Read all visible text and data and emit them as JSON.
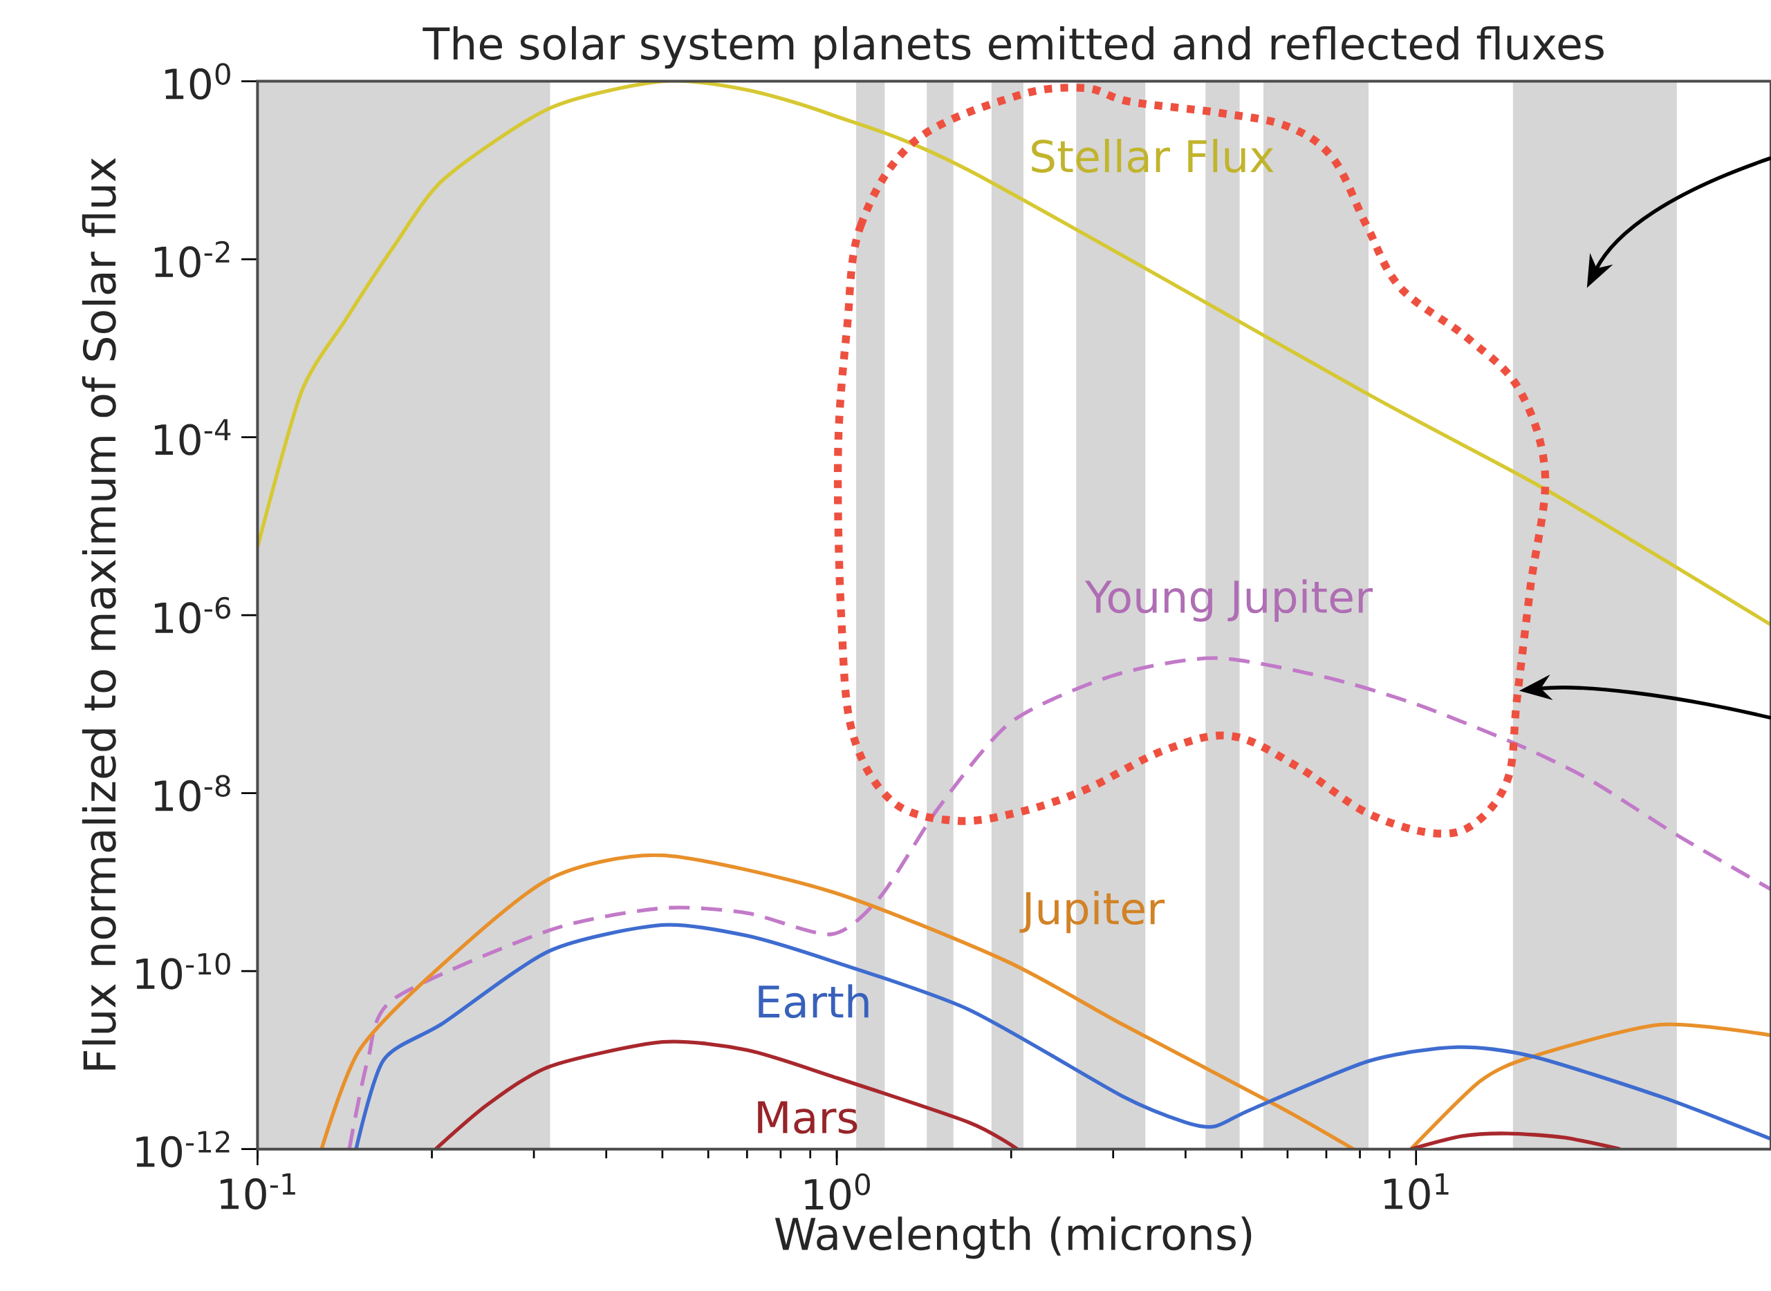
{
  "chart_data": {
    "type": "line",
    "title": "The solar system planets emitted and reflected fluxes",
    "xlabel": "Wavelength (microns)",
    "ylabel": "Flux normalized to maximum of Solar flux",
    "log": "xy",
    "xlim": [
      0.1,
      41
    ],
    "ylim": [
      1e-12,
      1
    ],
    "xticks": [
      {
        "value": 0.1,
        "label": "10$^{-1}$"
      },
      {
        "value": 1,
        "label": "10$^{0}$"
      },
      {
        "value": 10,
        "label": "10$^{1}$"
      }
    ],
    "yticks": [
      {
        "value": 1e-12,
        "label": "10$^{-12}$"
      },
      {
        "value": 1e-10,
        "label": "10$^{-10}$"
      },
      {
        "value": 1e-08,
        "label": "10$^{-8}$"
      },
      {
        "value": 1e-06,
        "label": "10$^{-6}$"
      },
      {
        "value": 0.0001,
        "label": "10$^{-4}$"
      },
      {
        "value": 0.01,
        "label": "10$^{-2}$"
      },
      {
        "value": 1,
        "label": "10$^{0}$"
      }
    ],
    "bands": [
      {
        "axis": "x",
        "from": 0.1,
        "to": 0.32,
        "color": "#d6d6d6"
      },
      {
        "axis": "x",
        "from": 1.08,
        "to": 1.21,
        "color": "#d6d6d6"
      },
      {
        "axis": "x",
        "from": 1.43,
        "to": 1.59,
        "color": "#d6d6d6"
      },
      {
        "axis": "x",
        "from": 1.85,
        "to": 2.1,
        "color": "#d6d6d6"
      },
      {
        "axis": "x",
        "from": 2.59,
        "to": 3.41,
        "color": "#d6d6d6"
      },
      {
        "axis": "x",
        "from": 4.33,
        "to": 4.96,
        "color": "#d6d6d6"
      },
      {
        "axis": "x",
        "from": 5.45,
        "to": 8.28,
        "color": "#d6d6d6"
      },
      {
        "axis": "x",
        "from": 14.7,
        "to": 28.2,
        "color": "#d6d6d6"
      }
    ],
    "series": [
      {
        "name": "Stellar Flux",
        "color": "#d6c832",
        "x": [
          0.1,
          0.119,
          0.142,
          0.172,
          0.21,
          0.32,
          0.5,
          0.7,
          0.98,
          1.69,
          8.3,
          16.9,
          41
        ],
        "values": [
          5.8e-06,
          0.00032,
          0.0021,
          0.014,
          0.08,
          0.5,
          1,
          0.8,
          0.42,
          0.1,
          0.0003,
          2.5e-05,
          7.8e-07
        ]
      },
      {
        "name": "Young Jupiter",
        "color": "#c27ac8",
        "line_style": "dashed",
        "x": [
          0.144,
          0.155,
          0.172,
          0.32,
          0.5,
          0.7,
          0.98,
          1.19,
          1.5,
          2,
          3,
          4.5,
          7,
          10,
          15,
          20,
          28.4,
          41
        ],
        "values": [
          1e-12,
          1e-11,
          4.9e-11,
          2.9e-10,
          5.1e-10,
          4.5e-10,
          2.6e-10,
          6.9e-10,
          6.9e-09,
          6.3e-08,
          2.1e-07,
          3.3e-07,
          2e-07,
          1e-07,
          3.5e-08,
          1.4e-08,
          3.3e-09,
          8.3e-10
        ]
      },
      {
        "name": "Jupiter",
        "color": "#e8902a",
        "x": [
          0.129,
          0.15,
          0.209,
          0.32,
          0.5,
          0.98,
          1.96,
          3.12,
          5.8,
          7.8,
          8.8,
          9.8,
          12.9,
          15.9,
          26.4,
          41
        ],
        "values": [
          1e-12,
          1.3e-11,
          1.2e-10,
          1.1e-09,
          2e-09,
          7.8e-10,
          1.3e-10,
          2.5e-11,
          3e-12,
          1e-12,
          null,
          1e-12,
          5.8e-12,
          1.1e-11,
          2.5e-11,
          1.9e-11
        ]
      },
      {
        "name": "Earth",
        "color": "#3e6cd0",
        "x": [
          0.148,
          0.165,
          0.209,
          0.32,
          0.5,
          0.7,
          0.98,
          1.69,
          3.12,
          4.0,
          4.49,
          5.2,
          8.3,
          11.8,
          15.9,
          26.4,
          41
        ],
        "values": [
          1e-12,
          1e-11,
          2.6e-11,
          1.7e-10,
          3.3e-10,
          2.5e-10,
          1.3e-10,
          3.7e-11,
          3.9e-12,
          2e-12,
          1.8e-12,
          2.8e-12,
          9.8e-12,
          1.4e-11,
          1.1e-11,
          3.9e-12,
          1.3e-12
        ]
      },
      {
        "name": "Mars",
        "color": "#a8282d",
        "x": [
          0.203,
          0.25,
          0.32,
          0.5,
          0.7,
          0.98,
          1.69,
          2.05,
          5,
          9.8,
          12,
          14.4,
          18,
          22.5
        ],
        "values": [
          1e-12,
          3.2e-12,
          8.5e-12,
          1.6e-11,
          1.3e-11,
          6.6e-12,
          2e-12,
          1e-12,
          null,
          1e-12,
          1.4e-12,
          1.5e-12,
          1.35e-12,
          1e-12
        ]
      }
    ]
  }
}
